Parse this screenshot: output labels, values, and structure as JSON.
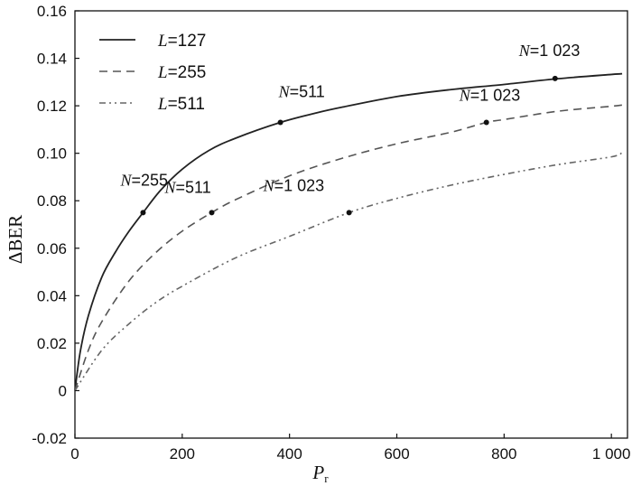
{
  "chart_data": {
    "type": "line",
    "title": "",
    "xlabel": "P",
    "xlabel_sub": "r",
    "ylabel": "ΔBER",
    "xlim": [
      0,
      1030
    ],
    "ylim": [
      -0.02,
      0.16
    ],
    "xticks": [
      {
        "value": 0,
        "label": "0"
      },
      {
        "value": 200,
        "label": "200"
      },
      {
        "value": 400,
        "label": "400"
      },
      {
        "value": 600,
        "label": "600"
      },
      {
        "value": 800,
        "label": "800"
      },
      {
        "value": 1000,
        "label": "1 000"
      }
    ],
    "yticks": [
      {
        "value": -0.02,
        "label": "-0.02"
      },
      {
        "value": 0,
        "label": "0"
      },
      {
        "value": 0.02,
        "label": "0.02"
      },
      {
        "value": 0.04,
        "label": "0.04"
      },
      {
        "value": 0.06,
        "label": "0.06"
      },
      {
        "value": 0.08,
        "label": "0.08"
      },
      {
        "value": 0.1,
        "label": "0.10"
      },
      {
        "value": 0.12,
        "label": "0.12"
      },
      {
        "value": 0.14,
        "label": "0.14"
      },
      {
        "value": 0.16,
        "label": "0.16"
      }
    ],
    "grid": false,
    "legend_position": "top-left",
    "series": [
      {
        "name": "L=127",
        "name_var": "L",
        "name_val": "=127",
        "style": "solid",
        "color": "#222222",
        "x": [
          0,
          10,
          25,
          50,
          75,
          100,
          127,
          160,
          200,
          250,
          300,
          383,
          450,
          500,
          600,
          700,
          800,
          900,
          1000,
          1020
        ],
        "y": [
          0,
          0.0165,
          0.0315,
          0.0478,
          0.0582,
          0.0669,
          0.075,
          0.0845,
          0.0933,
          0.1012,
          0.1064,
          0.113,
          0.117,
          0.1195,
          0.1239,
          0.1268,
          0.129,
          0.1314,
          0.1332,
          0.1335
        ]
      },
      {
        "name": "L=255",
        "name_var": "L",
        "name_val": "=255",
        "style": "dashed",
        "color": "#555555",
        "x": [
          0,
          25,
          50,
          100,
          150,
          200,
          255,
          300,
          400,
          500,
          600,
          700,
          767,
          800,
          900,
          1000,
          1020
        ],
        "y": [
          0,
          0.017,
          0.029,
          0.046,
          0.058,
          0.0672,
          0.075,
          0.0805,
          0.0905,
          0.098,
          0.104,
          0.1088,
          0.113,
          0.1142,
          0.1177,
          0.1198,
          0.1203
        ]
      },
      {
        "name": "L=511",
        "name_var": "L",
        "name_val": "=511",
        "style": "dashdot",
        "color": "#666666",
        "x": [
          0,
          50,
          100,
          150,
          200,
          300,
          400,
          511,
          600,
          700,
          800,
          900,
          1000,
          1020
        ],
        "y": [
          0,
          0.017,
          0.028,
          0.037,
          0.044,
          0.056,
          0.065,
          0.075,
          0.081,
          0.0865,
          0.0911,
          0.0952,
          0.0985,
          0.1003
        ]
      }
    ],
    "markers": [
      {
        "series": "L=127",
        "x": 127,
        "y": 0.075,
        "label_var": "N",
        "label_val": "=255"
      },
      {
        "series": "L=127",
        "x": 383,
        "y": 0.113,
        "label_var": "N",
        "label_val": "=511"
      },
      {
        "series": "L=127",
        "x": 895,
        "y": 0.1315,
        "label_var": "N",
        "label_val": "=1 023"
      },
      {
        "series": "L=255",
        "x": 255,
        "y": 0.075,
        "label_var": "N",
        "label_val": "=511"
      },
      {
        "series": "L=255",
        "x": 767,
        "y": 0.113,
        "label_var": "N",
        "label_val": "=1 023"
      },
      {
        "series": "L=511",
        "x": 511,
        "y": 0.075,
        "label_var": "N",
        "label_val": "=1 023"
      }
    ]
  }
}
